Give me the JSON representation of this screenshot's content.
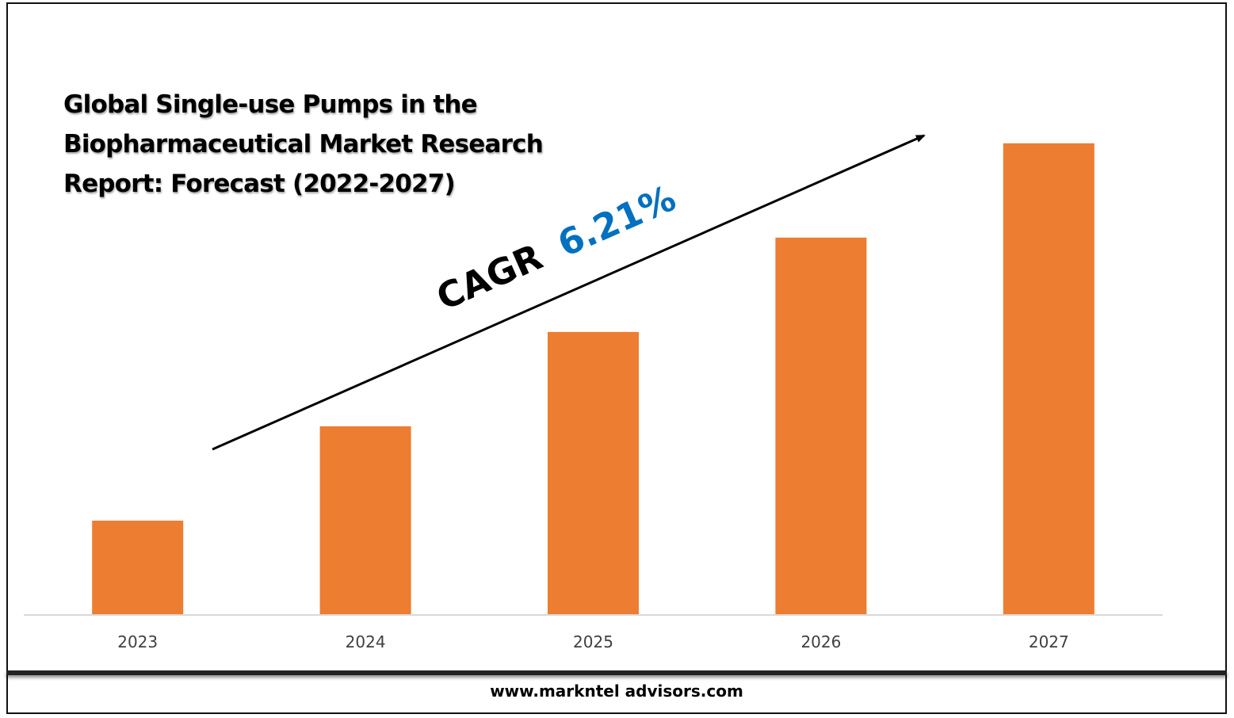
{
  "chart_data": {
    "type": "bar",
    "title": "Global Single-use Pumps in the\nBiopharmaceutical Market Research\nReport: Forecast (2022-2027)",
    "categories": [
      "2023",
      "2024",
      "2025",
      "2026",
      "2027"
    ],
    "values": [
      1,
      2,
      3,
      4,
      5
    ],
    "ylim": [
      0,
      5.2
    ],
    "xlabel": "",
    "ylabel": "",
    "grid": false,
    "legend": "none",
    "annotation": {
      "prefix": "CAGR",
      "value": "6.21%"
    },
    "colors": {
      "bar": "#ED7D31",
      "cagr_value": "#0070C0",
      "axis": "#d9d9d9",
      "tick_label": "#404040",
      "arrow": "#000000"
    }
  },
  "footer": {
    "url": "www.markntel advisors.com"
  }
}
